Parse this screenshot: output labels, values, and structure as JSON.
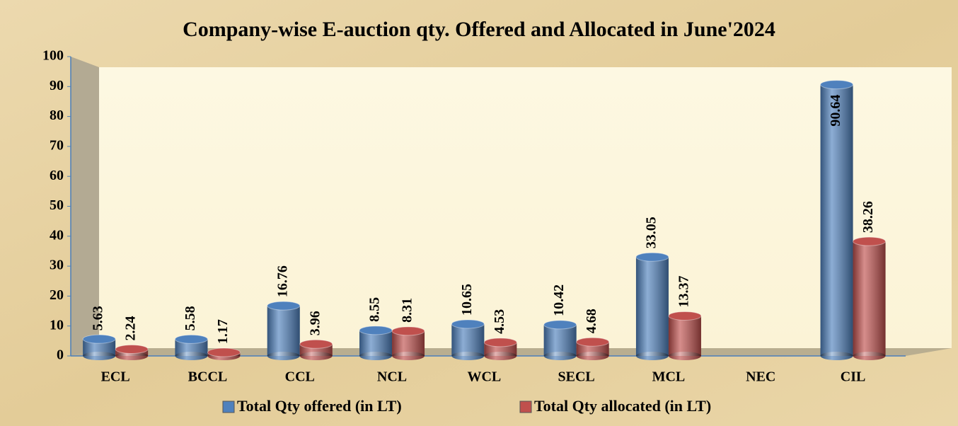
{
  "chart_data": {
    "type": "bar",
    "title": "Company-wise E-auction qty. Offered and Allocated in June'2024",
    "categories": [
      "ECL",
      "BCCL",
      "CCL",
      "NCL",
      "WCL",
      "SECL",
      "MCL",
      "NEC",
      "CIL"
    ],
    "series": [
      {
        "name": "Total Qty offered (in LT)",
        "color": "#4f81bd",
        "values": [
          5.63,
          5.58,
          16.76,
          8.55,
          10.65,
          10.42,
          33.05,
          null,
          90.64
        ]
      },
      {
        "name": "Total Qty allocated (in LT)",
        "color": "#c0504d",
        "values": [
          2.24,
          1.17,
          3.96,
          8.31,
          4.53,
          4.68,
          13.37,
          null,
          38.26
        ]
      }
    ],
    "ylim": [
      0,
      100
    ],
    "yticks": [
      0,
      10,
      20,
      30,
      40,
      50,
      60,
      70,
      80,
      90,
      100
    ],
    "grid": false,
    "legend": "bottom"
  }
}
